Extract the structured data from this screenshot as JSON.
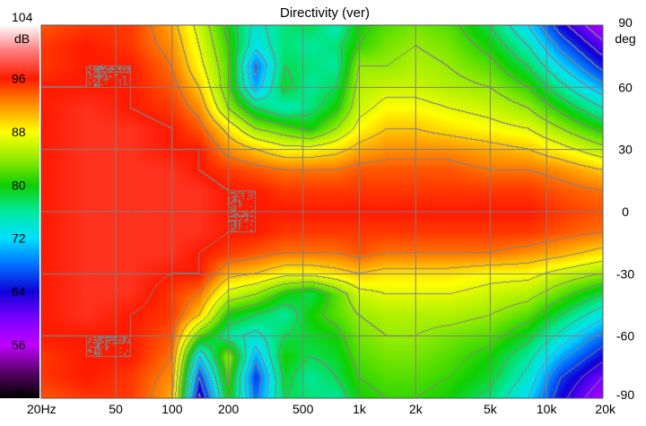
{
  "chart_data": {
    "type": "heatmap",
    "title": "Directivity (ver)",
    "color_unit": "dB",
    "angle_unit": "deg",
    "color_scale": {
      "ticks": [
        104,
        96,
        88,
        80,
        72,
        64,
        56,
        48
      ],
      "range": [
        48,
        104
      ],
      "stops": [
        {
          "value": 48,
          "color": "#000000"
        },
        {
          "value": 52,
          "color": "#5a006a"
        },
        {
          "value": 56,
          "color": "#c000ff"
        },
        {
          "value": 60,
          "color": "#7a00ff"
        },
        {
          "value": 64,
          "color": "#1000d8"
        },
        {
          "value": 68,
          "color": "#0070ff"
        },
        {
          "value": 72,
          "color": "#00e0ff"
        },
        {
          "value": 76,
          "color": "#00e8a0"
        },
        {
          "value": 80,
          "color": "#10d000"
        },
        {
          "value": 84,
          "color": "#98ec00"
        },
        {
          "value": 88,
          "color": "#ffff00"
        },
        {
          "value": 92,
          "color": "#ff9000"
        },
        {
          "value": 96,
          "color": "#ff1a00"
        },
        {
          "value": 100,
          "color": "#ff7878"
        },
        {
          "value": 104,
          "color": "#ffffff"
        }
      ]
    },
    "x_axis": {
      "scale": "log",
      "range": [
        20,
        20000
      ],
      "ticks": [
        {
          "value": 20,
          "label": "20Hz"
        },
        {
          "value": 50,
          "label": "50"
        },
        {
          "value": 100,
          "label": "100"
        },
        {
          "value": 200,
          "label": "200"
        },
        {
          "value": 500,
          "label": "500"
        },
        {
          "value": 1000,
          "label": "1k"
        },
        {
          "value": 2000,
          "label": "2k"
        },
        {
          "value": 5000,
          "label": "5k"
        },
        {
          "value": 10000,
          "label": "10k"
        },
        {
          "value": 20000,
          "label": "20k"
        }
      ]
    },
    "y_axis": {
      "range": [
        -90,
        90
      ],
      "ticks": [
        90,
        60,
        30,
        0,
        -30,
        -60,
        -90
      ]
    },
    "grid": true,
    "contour_step_db": 3,
    "x_freqs": [
      20,
      35,
      60,
      100,
      140,
      200,
      280,
      400,
      550,
      750,
      1000,
      1400,
      2000,
      3000,
      5000,
      8000,
      12000,
      20000
    ],
    "y_angles": [
      90,
      80,
      70,
      60,
      50,
      40,
      30,
      20,
      10,
      0,
      -10,
      -20,
      -30,
      -40,
      -50,
      -60,
      -70,
      -80,
      -90
    ],
    "values": [
      [
        94,
        95,
        95,
        91,
        86,
        80,
        74,
        77,
        78,
        75,
        80,
        82,
        83,
        82,
        78,
        72,
        64,
        57
      ],
      [
        95,
        96,
        95,
        92,
        87,
        81,
        73,
        77,
        76,
        77,
        81,
        83,
        84,
        83,
        80,
        75,
        68,
        61
      ],
      [
        95,
        96,
        96,
        93,
        88,
        82,
        68,
        78,
        77,
        76,
        84,
        84,
        85,
        84,
        82,
        78,
        72,
        65
      ],
      [
        96,
        96,
        96,
        94,
        90,
        82,
        70,
        79,
        76,
        78,
        85,
        86,
        86,
        85,
        84,
        81,
        76,
        70
      ],
      [
        96,
        97,
        96,
        95,
        92,
        84,
        78,
        75,
        77,
        80,
        86,
        88,
        88,
        87,
        86,
        84,
        80,
        75
      ],
      [
        96,
        97,
        97,
        96,
        94,
        89,
        84,
        82,
        80,
        84,
        88,
        90,
        90,
        89,
        88,
        87,
        84,
        80
      ],
      [
        96,
        97,
        97,
        96,
        96,
        92,
        90,
        88,
        88,
        89,
        91,
        92,
        92,
        92,
        91,
        90,
        88,
        85
      ],
      [
        96,
        97,
        97,
        97,
        96,
        95,
        94,
        93,
        93,
        93,
        94,
        94,
        94,
        94,
        93,
        93,
        92,
        90
      ],
      [
        96,
        97,
        97,
        97,
        97,
        96,
        96,
        95,
        95,
        95,
        95,
        95,
        95,
        95,
        95,
        95,
        94,
        93
      ],
      [
        96,
        97,
        97,
        97,
        97,
        96,
        96,
        96,
        96,
        96,
        96,
        96,
        96,
        96,
        96,
        96,
        95,
        94
      ],
      [
        96,
        97,
        97,
        97,
        97,
        96,
        96,
        95,
        95,
        95,
        95,
        95,
        95,
        95,
        95,
        95,
        94,
        93
      ],
      [
        96,
        97,
        97,
        97,
        96,
        95,
        94,
        93,
        93,
        93,
        94,
        93,
        93,
        93,
        93,
        92,
        91,
        89
      ],
      [
        96,
        97,
        97,
        96,
        96,
        91,
        90,
        88,
        88,
        89,
        90,
        89,
        89,
        89,
        88,
        88,
        86,
        84
      ],
      [
        96,
        97,
        97,
        95,
        93,
        86,
        84,
        80,
        78,
        82,
        86,
        87,
        87,
        87,
        86,
        85,
        82,
        78
      ],
      [
        96,
        97,
        96,
        95,
        90,
        80,
        78,
        76,
        80,
        82,
        84,
        85,
        85,
        85,
        84,
        82,
        78,
        73
      ],
      [
        96,
        96,
        96,
        94,
        82,
        76,
        74,
        78,
        79,
        80,
        83,
        84,
        84,
        83,
        82,
        79,
        74,
        68
      ],
      [
        95,
        96,
        96,
        93,
        72,
        84,
        70,
        80,
        78,
        79,
        82,
        83,
        83,
        82,
        80,
        76,
        70,
        64
      ],
      [
        95,
        96,
        95,
        92,
        66,
        82,
        66,
        79,
        76,
        78,
        81,
        82,
        82,
        81,
        79,
        74,
        66,
        60
      ],
      [
        94,
        95,
        95,
        91,
        62,
        80,
        68,
        78,
        77,
        76,
        80,
        81,
        81,
        80,
        77,
        72,
        64,
        57
      ]
    ]
  }
}
